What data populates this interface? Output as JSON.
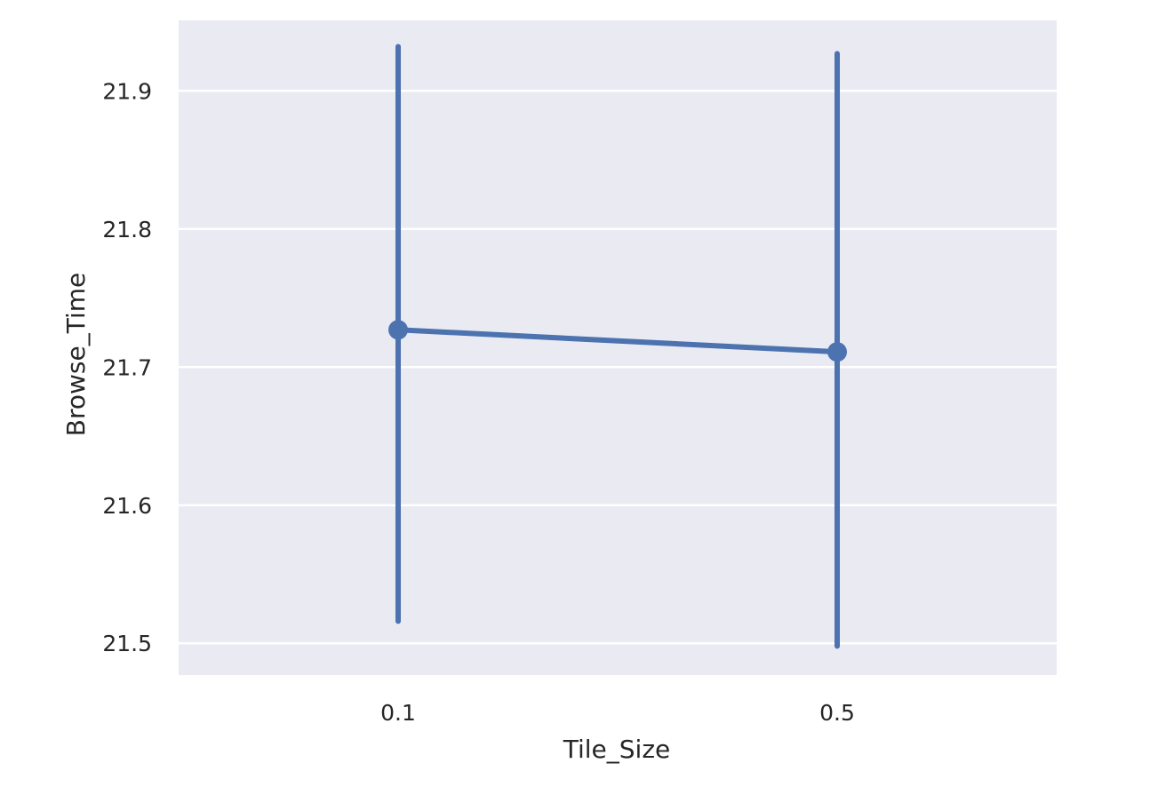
{
  "chart_data": {
    "type": "line",
    "title": "",
    "xlabel": "Tile_Size",
    "ylabel": "Browse_Time",
    "categories": [
      "0.1",
      "0.5"
    ],
    "series": [
      {
        "values": [
          21.727,
          21.711
        ],
        "error_low": [
          21.516,
          21.498
        ],
        "error_high": [
          21.932,
          21.927
        ],
        "color": "#4C72B0"
      }
    ],
    "yticks": [
      "21.5",
      "21.6",
      "21.7",
      "21.8",
      "21.9"
    ],
    "ylim": [
      21.477,
      21.951
    ],
    "grid": true,
    "background": "#EAEAF2",
    "grid_color": "#FFFFFF"
  }
}
